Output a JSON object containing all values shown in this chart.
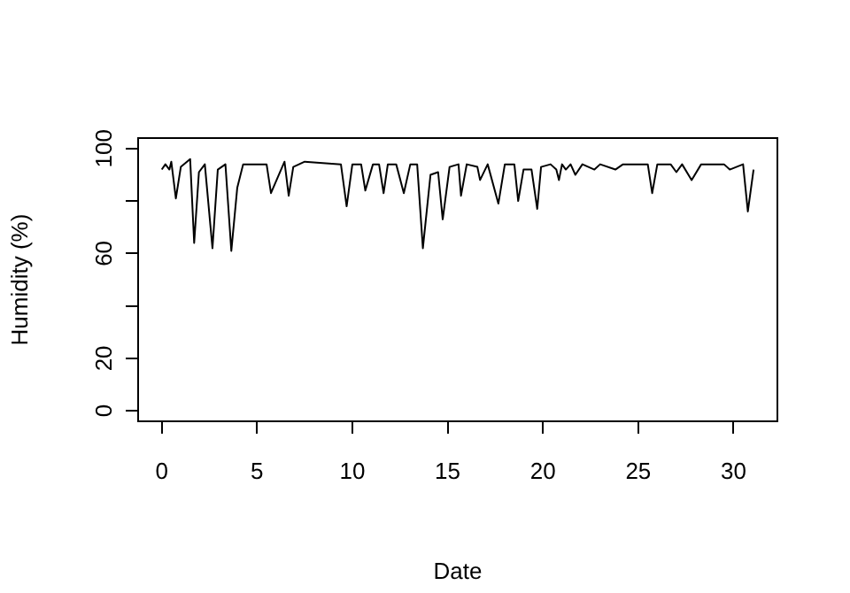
{
  "chart_data": {
    "type": "line",
    "xlabel": "Date",
    "ylabel": "Humidity (%)",
    "marker": "none",
    "grid": false,
    "legend": false,
    "xlim": [
      -1.24,
      32.3
    ],
    "ylim": [
      -4,
      104
    ],
    "xticks": [
      0,
      5,
      10,
      15,
      20,
      25,
      30
    ],
    "yticks": [
      0,
      20,
      {
        "value": 40,
        "label": null
      },
      60,
      {
        "value": 80,
        "label": null
      },
      100
    ],
    "series": [
      {
        "color": "#000000",
        "x": [
          0,
          0.19,
          0.4,
          0.5,
          0.74,
          1.0,
          1.49,
          1.7,
          1.95,
          2.26,
          2.66,
          2.94,
          3.34,
          3.65,
          3.96,
          4.27,
          5.5,
          5.73,
          6.44,
          6.66,
          6.9,
          7.5,
          9.4,
          9.7,
          10.0,
          10.46,
          10.68,
          11.08,
          11.4,
          11.64,
          11.86,
          12.3,
          12.7,
          13.04,
          13.4,
          13.7,
          14.1,
          14.5,
          14.74,
          15.1,
          15.57,
          15.7,
          16.0,
          16.56,
          16.7,
          17.1,
          17.66,
          18.0,
          18.5,
          18.7,
          18.98,
          19.4,
          19.7,
          19.9,
          20.4,
          20.7,
          20.84,
          21.0,
          21.2,
          21.45,
          21.7,
          22.07,
          22.7,
          23.0,
          23.8,
          24.2,
          25.5,
          25.73,
          26.0,
          26.7,
          27.0,
          27.3,
          27.8,
          28.3,
          29.5,
          29.8,
          30.5,
          30.75,
          31.05
        ],
        "values": [
          92,
          94,
          92,
          95,
          81,
          93,
          96,
          64,
          91,
          94,
          62,
          92,
          94,
          61,
          85,
          94,
          94,
          83,
          95,
          82,
          93,
          95,
          94,
          78,
          94,
          94,
          84,
          94,
          94,
          83,
          94,
          94,
          83,
          94,
          94,
          62,
          90,
          91,
          73,
          93,
          94,
          82,
          94,
          93,
          88,
          94,
          79,
          94,
          94,
          80,
          92,
          92,
          77,
          93,
          94,
          92,
          88,
          94,
          92,
          94,
          90,
          94,
          92,
          94,
          92,
          94,
          94,
          83,
          94,
          94,
          91,
          94,
          88,
          94,
          94,
          92,
          94,
          76,
          92
        ]
      }
    ]
  }
}
